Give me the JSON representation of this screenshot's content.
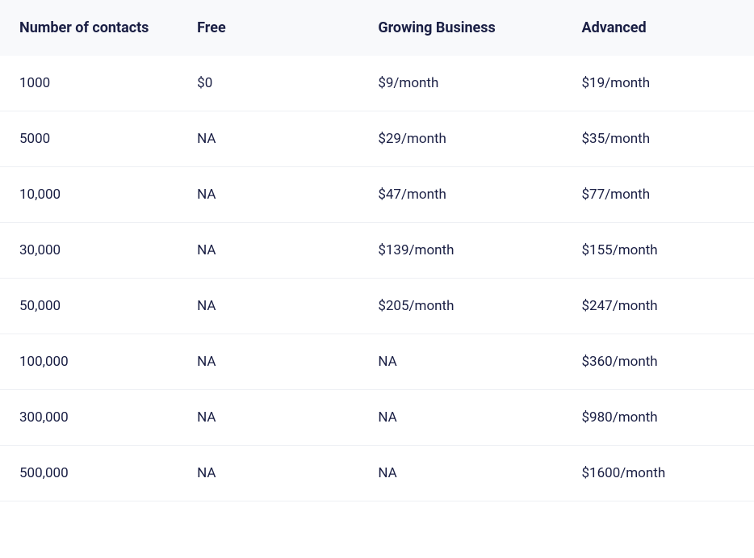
{
  "table": {
    "type": "table",
    "background_color": "#ffffff",
    "header_background_color": "#f8f9fb",
    "text_color": "#1a1f44",
    "border_color": "#eef0f4",
    "header_fontsize": 18,
    "header_fontweight": 700,
    "cell_fontsize": 17,
    "columns": [
      {
        "label": "Number of contacts",
        "width_pct": 24
      },
      {
        "label": "Free",
        "width_pct": 24
      },
      {
        "label": "Growing Business",
        "width_pct": 27
      },
      {
        "label": "Advanced",
        "width_pct": 25
      }
    ],
    "rows": [
      {
        "contacts": "1000",
        "free": "$0",
        "growing": "$9/month",
        "advanced": "$19/month"
      },
      {
        "contacts": "5000",
        "free": "NA",
        "growing": "$29/month",
        "advanced": "$35/month"
      },
      {
        "contacts": "10,000",
        "free": "NA",
        "growing": "$47/month",
        "advanced": "$77/month"
      },
      {
        "contacts": "30,000",
        "free": "NA",
        "growing": "$139/month",
        "advanced": "$155/month"
      },
      {
        "contacts": "50,000",
        "free": "NA",
        "growing": "$205/month",
        "advanced": "$247/month"
      },
      {
        "contacts": "100,000",
        "free": "NA",
        "growing": "NA",
        "advanced": "$360/month"
      },
      {
        "contacts": "300,000",
        "free": "NA",
        "growing": "NA",
        "advanced": "$980/month"
      },
      {
        "contacts": "500,000",
        "free": "NA",
        "growing": "NA",
        "advanced": "$1600/month"
      }
    ]
  }
}
